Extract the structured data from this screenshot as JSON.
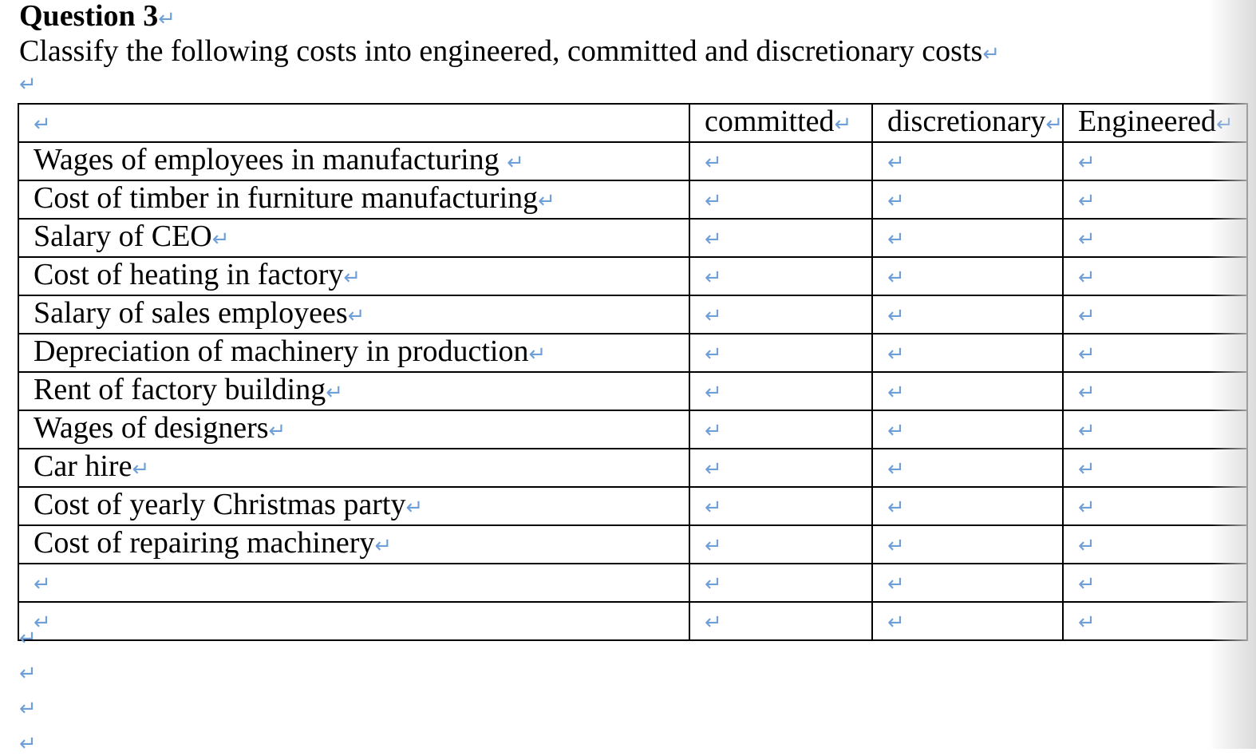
{
  "document": {
    "heading": "Question 3",
    "instruction": "Classify the following costs into engineered, committed and discretionary costs",
    "paragraph_mark": "↵"
  },
  "table": {
    "columns": [
      "",
      "committed",
      "discretionary",
      "Engineered"
    ],
    "rows": [
      "Wages of employees in manufacturing ",
      "Cost of timber in furniture manufacturing",
      "Salary of CEO",
      "Cost of heating in factory",
      "Salary of sales employees",
      "Depreciation of machinery in production",
      "Rent of factory building",
      "Wages of designers",
      "Car hire",
      "Cost of yearly Christmas party",
      "Cost of repairing machinery",
      "",
      ""
    ]
  }
}
